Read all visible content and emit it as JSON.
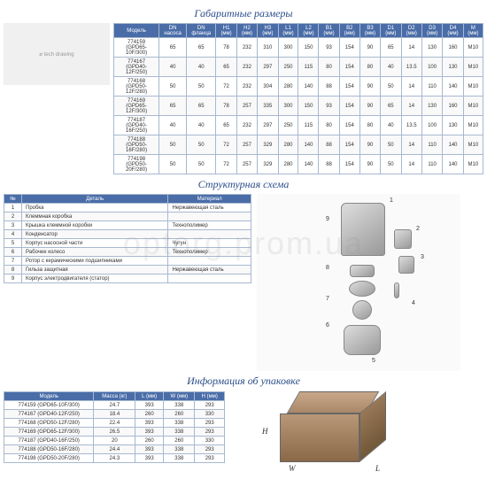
{
  "titles": {
    "dims": "Габаритные размеры",
    "struct": "Структурная схема",
    "pack": "Информация об упаковке"
  },
  "dimsTable": {
    "headers": [
      "Модель",
      "DN насоса",
      "DN фланца",
      "H1 (мм)",
      "H2 (мм)",
      "H3 (мм)",
      "L1 (мм)",
      "L2 (мм)",
      "B1 (мм)",
      "B2 (мм)",
      "B3 (мм)",
      "D1 (мм)",
      "D2 (мм)",
      "D3 (мм)",
      "D4 (мм)",
      "M (мм)"
    ],
    "rows": [
      [
        "774159 (GPD65-10F/300)",
        "65",
        "65",
        "78",
        "232",
        "310",
        "300",
        "150",
        "93",
        "154",
        "90",
        "65",
        "14",
        "130",
        "160",
        "M10"
      ],
      [
        "774167 (GPD40-12F/250)",
        "40",
        "40",
        "65",
        "232",
        "297",
        "250",
        "115",
        "80",
        "154",
        "80",
        "40",
        "13.5",
        "100",
        "130",
        "M10"
      ],
      [
        "774168 (GPD50-12F/280)",
        "50",
        "50",
        "72",
        "232",
        "304",
        "280",
        "140",
        "88",
        "154",
        "90",
        "50",
        "14",
        "110",
        "140",
        "M10"
      ],
      [
        "774169 (GPD65-12F/300)",
        "65",
        "65",
        "78",
        "257",
        "335",
        "300",
        "150",
        "93",
        "154",
        "90",
        "65",
        "14",
        "130",
        "160",
        "M10"
      ],
      [
        "774187 (GPD40-16F/250)",
        "40",
        "40",
        "65",
        "232",
        "297",
        "250",
        "115",
        "80",
        "154",
        "80",
        "40",
        "13.5",
        "100",
        "130",
        "M10"
      ],
      [
        "774188 (GPD50-16F/280)",
        "50",
        "50",
        "72",
        "257",
        "329",
        "280",
        "140",
        "88",
        "154",
        "90",
        "50",
        "14",
        "110",
        "140",
        "M10"
      ],
      [
        "774198 (GPD50-20F/280)",
        "50",
        "50",
        "72",
        "257",
        "329",
        "280",
        "140",
        "88",
        "154",
        "90",
        "50",
        "14",
        "110",
        "140",
        "M10"
      ]
    ]
  },
  "partsTable": {
    "headers": [
      "№",
      "Деталь",
      "Материал"
    ],
    "rows": [
      [
        "1",
        "Пробка",
        "Нержавеющая сталь"
      ],
      [
        "2",
        "Клеммная коробка",
        ""
      ],
      [
        "3",
        "Крышка клеммной коробки",
        "Технополимер"
      ],
      [
        "4",
        "Конденсатор",
        ""
      ],
      [
        "5",
        "Корпус насосной части",
        "Чугун"
      ],
      [
        "6",
        "Рабочее колесо",
        "Технополимер"
      ],
      [
        "7",
        "Ротор с керамическими подшипниками",
        ""
      ],
      [
        "8",
        "Гильза защитная",
        "Нержавеющая сталь"
      ],
      [
        "9",
        "Корпус электродвигателя (статор)",
        ""
      ]
    ]
  },
  "packTable": {
    "headers": [
      "Модель",
      "Масса (кг)",
      "L (мм)",
      "W (мм)",
      "H (мм)"
    ],
    "rows": [
      [
        "774159 (GPD65-10F/300)",
        "24.7",
        "393",
        "338",
        "293"
      ],
      [
        "774167 (GPD40-12F/250)",
        "18.4",
        "260",
        "260",
        "330"
      ],
      [
        "774168 (GPD50-12F/280)",
        "22.4",
        "393",
        "338",
        "293"
      ],
      [
        "774169 (GPD65-12F/300)",
        "26.5",
        "393",
        "338",
        "293"
      ],
      [
        "774187 (GPD40-16F/250)",
        "20",
        "260",
        "260",
        "330"
      ],
      [
        "774188 (GPD50-16F/280)",
        "24.4",
        "393",
        "338",
        "293"
      ],
      [
        "774198 (GPD50-20F/280)",
        "24.3",
        "393",
        "338",
        "293"
      ]
    ]
  },
  "dims3d": {
    "H": "H",
    "W": "W",
    "L": "L"
  },
  "watermark": "optorg.prom.ua"
}
